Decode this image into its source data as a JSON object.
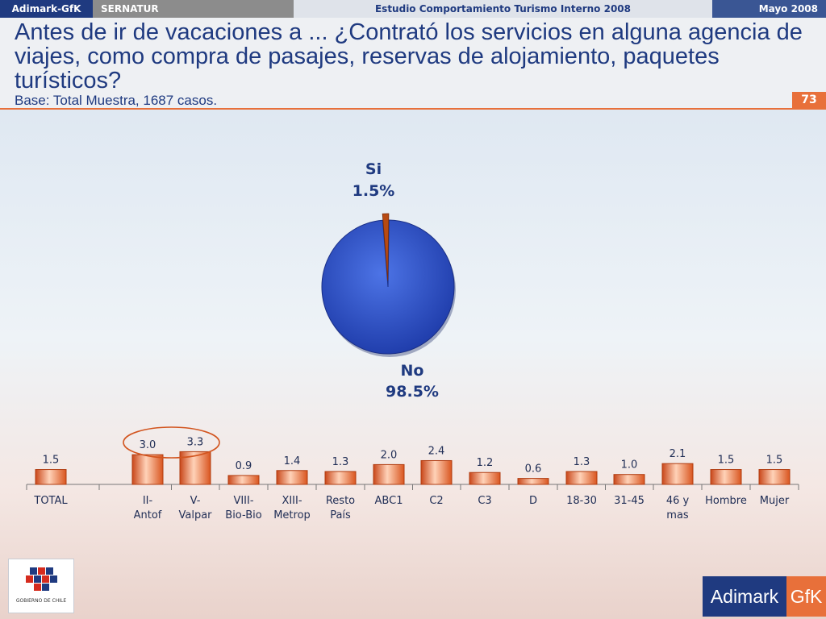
{
  "header": {
    "brand": "Adimark-GfK",
    "client": "SERNATUR",
    "study": "Estudio Comportamiento Turismo Interno 2008",
    "date": "Mayo 2008",
    "page_number": "73"
  },
  "title": "Antes de ir de vacaciones a  ... ¿Contrató los servicios en alguna agencia de viajes, como compra de pasajes, reservas de alojamiento, paquetes turísticos?",
  "base": "Base: Total Muestra, 1687 casos.",
  "logos": {
    "left": "GOBIERNO DE CHILE",
    "right_a": "Adimark",
    "right_b": "GfK"
  },
  "colors": {
    "accent": "#e8703a",
    "navy": "#1f3a80",
    "pie_no": "#2e52c6",
    "pie_si": "#b84a12"
  },
  "chart_data": [
    {
      "type": "pie",
      "slices": [
        {
          "name": "Si",
          "label": "1.5%",
          "value": 1.5
        },
        {
          "name": "No",
          "label": "98.5%",
          "value": 98.5
        }
      ]
    },
    {
      "type": "bar",
      "categories": [
        "TOTAL",
        "II-\nAntof",
        "V-\nValpar",
        "VIII-\nBio-Bio",
        "XIII-\nMetrop",
        "Resto\nPaís",
        "ABC1",
        "C2",
        "C3",
        "D",
        "18-30",
        "31-45",
        "46 y\nmas",
        "Hombre",
        "Mujer"
      ],
      "values": [
        1.5,
        3.0,
        3.3,
        0.9,
        1.4,
        1.3,
        2.0,
        2.4,
        1.2,
        0.6,
        1.3,
        1.0,
        2.1,
        1.5,
        1.5
      ],
      "value_labels": [
        "1.5",
        "3.0",
        "3.3",
        "0.9",
        "1.4",
        "1.3",
        "2.0",
        "2.4",
        "1.2",
        "0.6",
        "1.3",
        "1.0",
        "2.1",
        "1.5",
        "1.5"
      ],
      "highlighted": [
        "II-\nAntof",
        "V-\nValpar"
      ]
    }
  ]
}
